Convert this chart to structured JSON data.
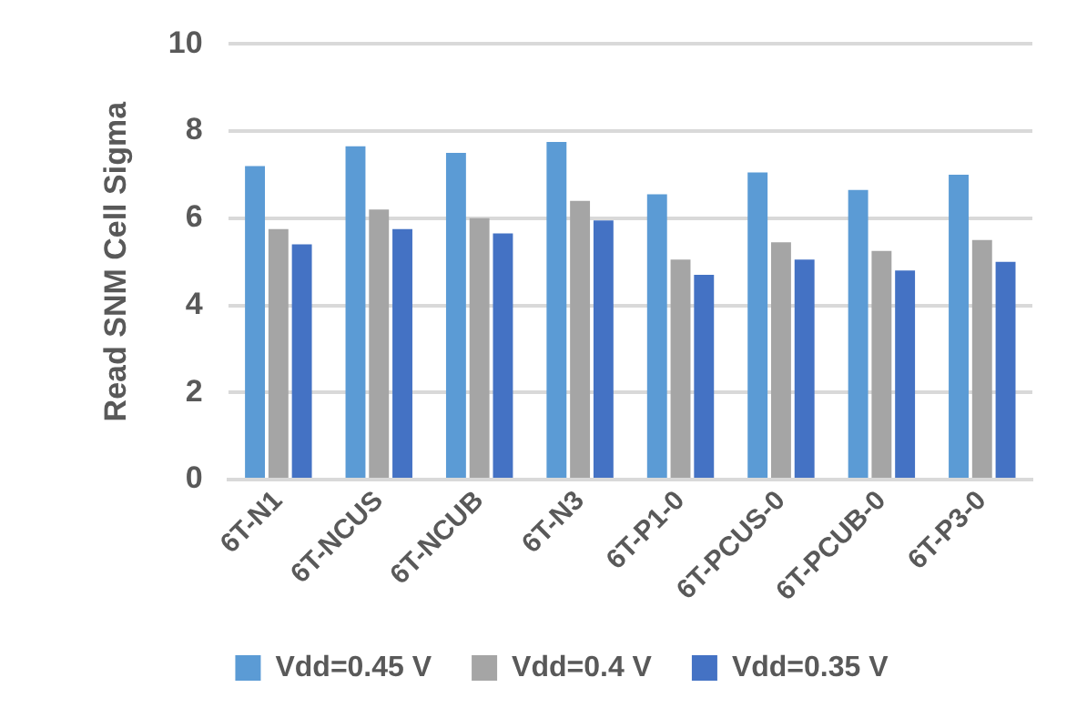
{
  "chart_data": {
    "type": "bar",
    "ylabel": "Read SNM Cell Sigma",
    "categories": [
      "6T-N1",
      "6T-NCUS",
      "6T-NCUB",
      "6T-N3",
      "6T-P1-0",
      "6T-PCUS-0",
      "6T-PCUB-0",
      "6T-P3-0"
    ],
    "series": [
      {
        "name": "Vdd=0.45 V",
        "color": "#5b9bd5",
        "values": [
          7.2,
          7.65,
          7.5,
          7.75,
          6.55,
          7.05,
          6.65,
          7.0
        ]
      },
      {
        "name": "Vdd=0.4 V",
        "color": "#a5a5a5",
        "values": [
          5.75,
          6.2,
          6.0,
          6.4,
          5.05,
          5.45,
          5.25,
          5.5
        ]
      },
      {
        "name": "Vdd=0.35 V",
        "color": "#4472c4",
        "values": [
          5.4,
          5.75,
          5.65,
          5.95,
          4.7,
          5.05,
          4.8,
          5.0
        ]
      }
    ],
    "ylim": [
      0,
      10
    ],
    "yticks": [
      0,
      2,
      4,
      6,
      8,
      10
    ],
    "grid": "y",
    "legend": "bottom"
  }
}
